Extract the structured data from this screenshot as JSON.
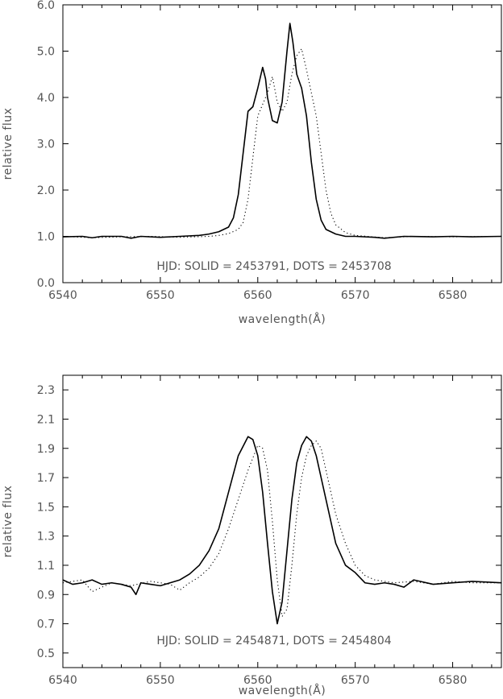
{
  "chart_data": [
    {
      "type": "line",
      "title": "",
      "xlabel": "wavelength(Å)",
      "ylabel": "relative flux",
      "xlim": [
        6540,
        6585
      ],
      "ylim": [
        0.0,
        6.0
      ],
      "xticks": [
        6540,
        6550,
        6560,
        6570,
        6580
      ],
      "yticks": [
        0.0,
        1.0,
        2.0,
        3.0,
        4.0,
        5.0,
        6.0
      ],
      "xtick_labels": [
        "6540",
        "6550",
        "6560",
        "6570",
        "6580"
      ],
      "ytick_labels": [
        "0.0",
        "1.0",
        "2.0",
        "3.0",
        "4.0",
        "5.0",
        "6.0"
      ],
      "grid": false,
      "annotation": "HJD: SOLID = 2453791, DOTS = 2453708",
      "series": [
        {
          "style": "solid",
          "x": [
            6540,
            6542,
            6543,
            6544,
            6546,
            6547,
            6548,
            6550,
            6552,
            6554,
            6555,
            6556,
            6557,
            6557.5,
            6558,
            6558.5,
            6559,
            6559.5,
            6560,
            6560.5,
            6560.8,
            6561,
            6561.5,
            6562,
            6562.5,
            6563,
            6563.3,
            6563.6,
            6564,
            6564.5,
            6565,
            6565.5,
            6566,
            6566.5,
            6567,
            6568,
            6569,
            6570,
            6572,
            6573,
            6575,
            6578,
            6580,
            6582,
            6585
          ],
          "y": [
            0.99,
            1.0,
            0.97,
            1.0,
            1.0,
            0.96,
            1.0,
            0.98,
            1.0,
            1.02,
            1.05,
            1.1,
            1.2,
            1.4,
            1.9,
            2.8,
            3.7,
            3.8,
            4.2,
            4.65,
            4.4,
            4.0,
            3.5,
            3.45,
            3.9,
            5.0,
            5.6,
            5.2,
            4.5,
            4.2,
            3.6,
            2.6,
            1.8,
            1.35,
            1.15,
            1.05,
            1.0,
            1.0,
            0.98,
            0.96,
            1.0,
            0.99,
            1.0,
            0.99,
            1.0
          ]
        },
        {
          "style": "dotted",
          "x": [
            6540,
            6543,
            6546,
            6549,
            6552,
            6555,
            6556,
            6557,
            6558,
            6558.5,
            6559,
            6559.5,
            6560,
            6561,
            6561.5,
            6562,
            6562.5,
            6563,
            6563.5,
            6564,
            6564.5,
            6565,
            6565.5,
            6566,
            6566.5,
            6567,
            6567.5,
            6568,
            6569,
            6570,
            6573,
            6576,
            6580,
            6585
          ],
          "y": [
            1.0,
            0.97,
            0.99,
            1.0,
            0.98,
            1.0,
            1.02,
            1.06,
            1.15,
            1.3,
            1.8,
            2.7,
            3.6,
            4.1,
            4.45,
            3.9,
            3.7,
            3.9,
            4.5,
            4.9,
            5.05,
            4.6,
            4.1,
            3.6,
            2.8,
            2.0,
            1.5,
            1.25,
            1.08,
            1.02,
            0.97,
            1.0,
            0.99,
            1.0
          ]
        }
      ]
    },
    {
      "type": "line",
      "title": "",
      "xlabel": "wavelength(Å)",
      "ylabel": "relative flux",
      "xlim": [
        6540,
        6585
      ],
      "ylim": [
        0.4,
        2.4
      ],
      "xticks": [
        6540,
        6550,
        6560,
        6570,
        6580
      ],
      "yticks": [
        0.5,
        0.7,
        0.9,
        1.1,
        1.3,
        1.5,
        1.7,
        1.9,
        2.1,
        2.3
      ],
      "xtick_labels": [
        "6540",
        "6550",
        "6560",
        "6570",
        "6580"
      ],
      "ytick_labels": [
        "0.5",
        "0.7",
        "0.9",
        "1.1",
        "1.3",
        "1.5",
        "1.7",
        "1.9",
        "2.1",
        "2.3"
      ],
      "grid": false,
      "annotation": "HJD: SOLID = 2454871, DOTS = 2454804",
      "series": [
        {
          "style": "solid",
          "x": [
            6540,
            6541,
            6542,
            6543,
            6544,
            6545,
            6546,
            6547,
            6547.5,
            6548,
            6549,
            6550,
            6551,
            6552,
            6553,
            6554,
            6555,
            6556,
            6557,
            6558,
            6559,
            6559.5,
            6560,
            6560.5,
            6561,
            6561.5,
            6562,
            6562.5,
            6563,
            6563.5,
            6564,
            6564.5,
            6565,
            6565.5,
            6566,
            6567,
            6568,
            6569,
            6570,
            6571,
            6572,
            6573,
            6574,
            6575,
            6576,
            6578,
            6580,
            6582,
            6585
          ],
          "y": [
            1.0,
            0.97,
            0.98,
            1.0,
            0.97,
            0.98,
            0.97,
            0.95,
            0.9,
            0.98,
            0.97,
            0.96,
            0.98,
            1.0,
            1.04,
            1.1,
            1.2,
            1.35,
            1.6,
            1.85,
            1.98,
            1.96,
            1.85,
            1.6,
            1.25,
            0.92,
            0.7,
            0.85,
            1.2,
            1.55,
            1.8,
            1.92,
            1.98,
            1.95,
            1.85,
            1.55,
            1.25,
            1.1,
            1.05,
            0.98,
            0.97,
            0.98,
            0.97,
            0.95,
            1.0,
            0.97,
            0.98,
            0.99,
            0.98
          ]
        },
        {
          "style": "dotted",
          "x": [
            6540,
            6542,
            6543,
            6545,
            6547,
            6549,
            6551,
            6552,
            6553,
            6554,
            6555,
            6556,
            6557,
            6558,
            6559,
            6560,
            6560.5,
            6561,
            6561.5,
            6562,
            6562.5,
            6563,
            6563.5,
            6564,
            6564.5,
            6565,
            6565.5,
            6566,
            6566.5,
            6567,
            6568,
            6569,
            6570,
            6571,
            6572,
            6574,
            6576,
            6578,
            6580,
            6582,
            6585
          ],
          "y": [
            0.98,
            1.0,
            0.92,
            0.98,
            0.96,
            0.99,
            0.97,
            0.93,
            0.98,
            1.02,
            1.08,
            1.18,
            1.35,
            1.55,
            1.75,
            1.92,
            1.9,
            1.75,
            1.4,
            1.0,
            0.75,
            0.8,
            1.1,
            1.45,
            1.7,
            1.85,
            1.92,
            1.95,
            1.9,
            1.75,
            1.45,
            1.25,
            1.1,
            1.03,
            1.0,
            0.98,
            0.99,
            0.97,
            0.99,
            0.98,
            0.98
          ]
        }
      ]
    }
  ]
}
